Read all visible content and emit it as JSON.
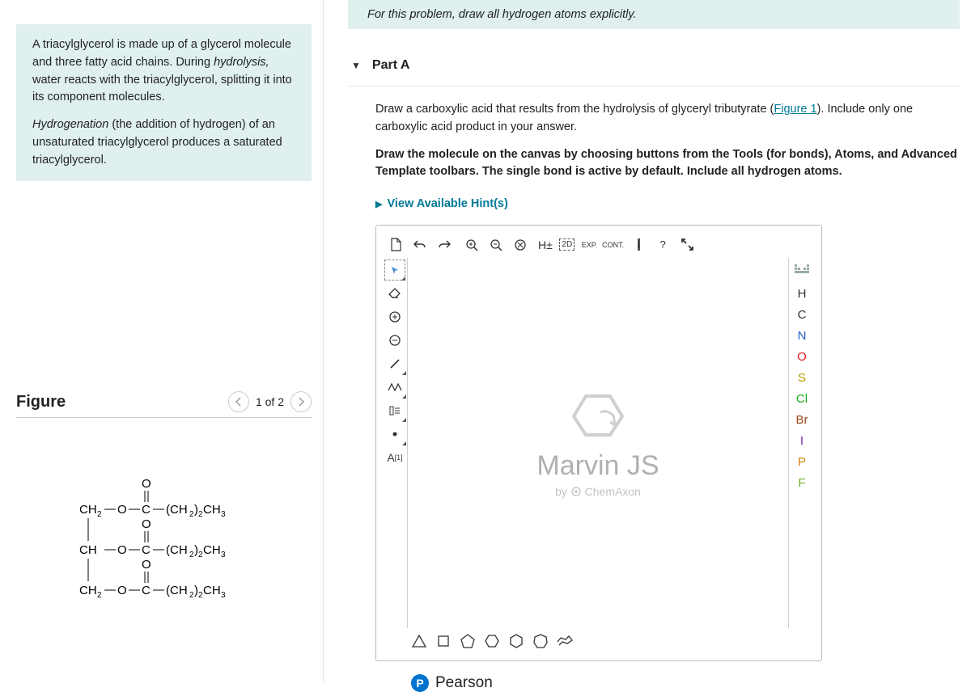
{
  "left": {
    "info_p1_a": "A triacylglycerol is made up of a glycerol molecule and three fatty acid chains. During ",
    "info_p1_em": "hydrolysis,",
    "info_p1_b": " water reacts with the triacylglycerol, splitting it into its component molecules.",
    "info_p2_em": "Hydrogenation",
    "info_p2": " (the addition of hydrogen) of an unsaturated triacylglycerol produces a saturated triacylglycerol.",
    "figure_title": "Figure",
    "figure_count": "1 of 2"
  },
  "banner": "For this problem, draw all hydrogen atoms explicitly.",
  "part_label": "Part A",
  "q1_a": "Draw a carboxylic acid that results from the hydrolysis of glyceryl tributyrate (",
  "q1_link": "Figure 1",
  "q1_b": "). Include only one carboxylic acid product in your answer.",
  "q2": "Draw the molecule on the canvas by choosing buttons from the Tools (for bonds), Atoms, and Advanced Template toolbars. The single bond is active by default. Include all hydrogen atoms.",
  "hints_label": "View Available Hint(s)",
  "atoms": [
    {
      "sym": "H",
      "color": "#333333"
    },
    {
      "sym": "C",
      "color": "#333333"
    },
    {
      "sym": "N",
      "color": "#2b5fca"
    },
    {
      "sym": "O",
      "color": "#e11919"
    },
    {
      "sym": "S",
      "color": "#b89b00"
    },
    {
      "sym": "Cl",
      "color": "#18a818"
    },
    {
      "sym": "Br",
      "color": "#a14a1a"
    },
    {
      "sym": "I",
      "color": "#6b2db3"
    },
    {
      "sym": "P",
      "color": "#d87b0f"
    },
    {
      "sym": "F",
      "color": "#6fae2c"
    }
  ],
  "marvin": {
    "name": "Marvin JS",
    "by_prefix": "by",
    "by": "ChemAxon"
  },
  "pearson": "Pearson",
  "toolbar": {
    "exp": "EXP.",
    "cont": "CONT.",
    "h_pm": "H±",
    "twod": "2D",
    "a_label": "A",
    "a_sup": "[1]"
  }
}
